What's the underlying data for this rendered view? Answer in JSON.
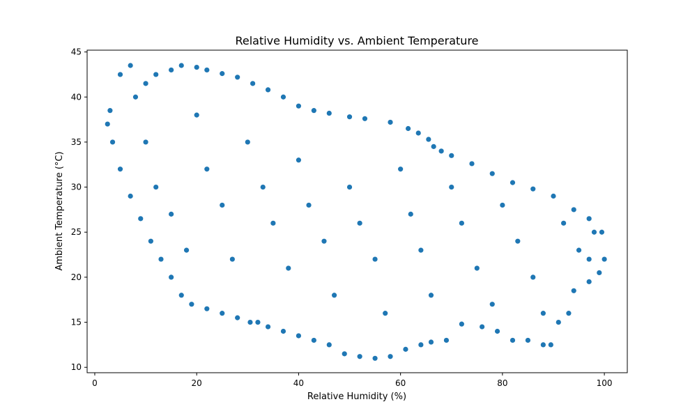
{
  "chart_data": {
    "type": "scatter",
    "title": "Relative Humidity vs. Ambient Temperature",
    "xlabel": "Relative Humidity (%)",
    "ylabel": "Ambient Temperature (°C)",
    "xlim": [
      -1.5,
      104.5
    ],
    "ylim": [
      9.4,
      45.2
    ],
    "xticks": [
      0,
      20,
      40,
      60,
      80,
      100
    ],
    "yticks": [
      10,
      15,
      20,
      25,
      30,
      35,
      40,
      45
    ],
    "grid": false,
    "legend": "none",
    "colors": {
      "marker_fill": "#1f77b4",
      "marker_edge": "#ffffff"
    },
    "series": [
      {
        "points": [
          [
            3,
            38.5
          ],
          [
            5,
            42.5
          ],
          [
            7,
            43.5
          ],
          [
            8,
            40
          ],
          [
            10,
            41.5
          ],
          [
            12,
            42.5
          ],
          [
            15,
            43
          ],
          [
            17,
            43.5
          ],
          [
            20,
            43.3
          ],
          [
            22,
            43
          ],
          [
            25,
            42.6
          ],
          [
            28,
            42.2
          ],
          [
            31,
            41.5
          ],
          [
            34,
            40.8
          ],
          [
            37,
            40
          ],
          [
            40,
            39
          ],
          [
            43,
            38.5
          ],
          [
            46,
            38.2
          ],
          [
            50,
            37.8
          ],
          [
            53,
            37.6
          ],
          [
            58,
            37.2
          ],
          [
            61.5,
            36.5
          ],
          [
            63.5,
            36
          ],
          [
            65.5,
            35.3
          ],
          [
            66.5,
            34.5
          ],
          [
            68,
            34
          ],
          [
            70,
            33.5
          ],
          [
            74,
            32.6
          ],
          [
            78,
            31.5
          ],
          [
            82,
            30.5
          ],
          [
            86,
            29.8
          ],
          [
            90,
            29
          ],
          [
            94,
            27.5
          ],
          [
            97,
            26.5
          ],
          [
            99.5,
            25
          ],
          [
            100,
            22
          ],
          [
            99,
            20.5
          ],
          [
            97,
            19.5
          ],
          [
            94,
            18.5
          ],
          [
            93,
            16
          ],
          [
            91,
            15
          ],
          [
            89.5,
            12.5
          ],
          [
            88,
            12.5
          ],
          [
            85,
            13
          ],
          [
            82,
            13
          ],
          [
            79,
            14
          ],
          [
            76,
            14.5
          ],
          [
            72,
            14.8
          ],
          [
            69,
            13
          ],
          [
            66,
            12.8
          ],
          [
            64,
            12.5
          ],
          [
            61,
            12
          ],
          [
            58,
            11.2
          ],
          [
            55,
            11
          ],
          [
            52,
            11.2
          ],
          [
            49,
            11.5
          ],
          [
            46,
            12.5
          ],
          [
            43,
            13
          ],
          [
            40,
            13.5
          ],
          [
            37,
            14
          ],
          [
            34,
            14.5
          ],
          [
            32,
            15
          ],
          [
            30.5,
            15
          ],
          [
            28,
            15.5
          ],
          [
            25,
            16
          ],
          [
            22,
            16.5
          ],
          [
            19,
            17
          ],
          [
            17,
            18
          ],
          [
            15,
            20
          ],
          [
            13,
            22
          ],
          [
            11,
            24
          ],
          [
            9,
            26.5
          ],
          [
            7,
            29
          ],
          [
            5,
            32
          ],
          [
            3.5,
            35
          ],
          [
            2.5,
            37
          ],
          [
            10,
            35
          ],
          [
            12,
            30
          ],
          [
            15,
            27
          ],
          [
            18,
            23
          ],
          [
            20,
            38
          ],
          [
            22,
            32
          ],
          [
            25,
            28
          ],
          [
            27,
            22
          ],
          [
            30,
            35
          ],
          [
            33,
            30
          ],
          [
            35,
            26
          ],
          [
            38,
            21
          ],
          [
            40,
            33
          ],
          [
            42,
            28
          ],
          [
            45,
            24
          ],
          [
            47,
            18
          ],
          [
            50,
            30
          ],
          [
            52,
            26
          ],
          [
            55,
            22
          ],
          [
            57,
            16
          ],
          [
            60,
            32
          ],
          [
            62,
            27
          ],
          [
            64,
            23
          ],
          [
            66,
            18
          ],
          [
            70,
            30
          ],
          [
            72,
            26
          ],
          [
            75,
            21
          ],
          [
            78,
            17
          ],
          [
            80,
            28
          ],
          [
            83,
            24
          ],
          [
            86,
            20
          ],
          [
            88,
            16
          ],
          [
            92,
            26
          ],
          [
            95,
            23
          ],
          [
            97,
            22
          ],
          [
            98,
            25
          ]
        ]
      }
    ]
  }
}
